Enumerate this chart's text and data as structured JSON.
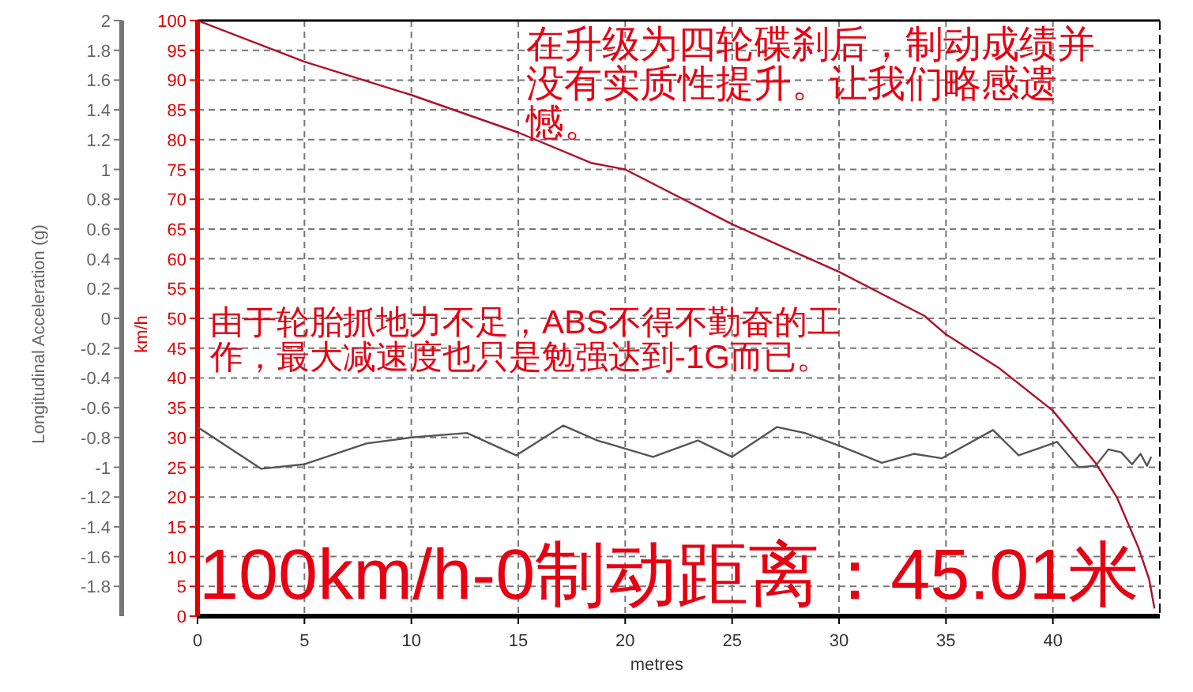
{
  "chart_data": {
    "type": "line",
    "xlabel": "metres",
    "ylabel": "km/h",
    "y2label": "Longitudinal Acceleration (g)",
    "xlim": [
      0,
      45
    ],
    "xticks": [
      0,
      5,
      10,
      15,
      20,
      25,
      30,
      35,
      40
    ],
    "ylim": [
      0,
      100
    ],
    "yticks": [
      0,
      5,
      10,
      15,
      20,
      25,
      30,
      35,
      40,
      45,
      50,
      55,
      60,
      65,
      70,
      75,
      80,
      85,
      90,
      95,
      100
    ],
    "y2lim": [
      -2,
      2
    ],
    "y2ticks": [
      -1.8,
      -1.6,
      -1.4,
      -1.2,
      -1,
      -0.8,
      -0.6,
      -0.4,
      -0.2,
      0,
      0.2,
      0.4,
      0.6,
      0.8,
      1,
      1.2,
      1.4,
      1.6,
      1.8,
      2
    ],
    "grid": true,
    "series": [
      {
        "color": "#b0102a",
        "x": [
          0,
          5,
          10,
          15,
          18.4,
          20,
          25,
          28,
          30,
          34,
          35,
          37.5,
          40,
          42,
          43,
          44,
          44.5,
          44.75
        ],
        "values": [
          100,
          93.1,
          87.5,
          81.2,
          76.1,
          75,
          65.8,
          61,
          57.8,
          50.4,
          47.3,
          41.6,
          34.5,
          25.7,
          19.9,
          11.5,
          6.2,
          1.3
        ]
      },
      {
        "color": "#555555",
        "axis": "y2",
        "x": [
          0,
          2.98,
          5,
          7.9,
          10,
          12.6,
          14.9,
          17.1,
          18.7,
          21.3,
          23.4,
          25,
          27.1,
          28.4,
          30.1,
          32,
          33.5,
          34.8,
          37.2,
          38.4,
          40.2,
          41.2,
          42,
          42.6,
          43.2,
          43.7,
          44.1,
          44.4,
          44.6
        ],
        "values": [
          -0.73,
          -1.01,
          -0.98,
          -0.84,
          -0.8,
          -0.77,
          -0.92,
          -0.72,
          -0.82,
          -0.93,
          -0.82,
          -0.93,
          -0.73,
          -0.77,
          -0.86,
          -0.97,
          -0.91,
          -0.94,
          -0.75,
          -0.92,
          -0.83,
          -1,
          -0.99,
          -0.88,
          -0.9,
          -0.98,
          -0.91,
          -0.99,
          -0.93
        ]
      }
    ],
    "annotations": [
      "在升级为四轮碟刹后，制动成绩并没有实质性提升。让我们略感遗憾。",
      "由于轮胎抓地力不足，ABS不得不勤奋的工作，最大减速度也只是勉强达到-1G而已。",
      "100km/h-0制动距离：45.01米"
    ]
  }
}
